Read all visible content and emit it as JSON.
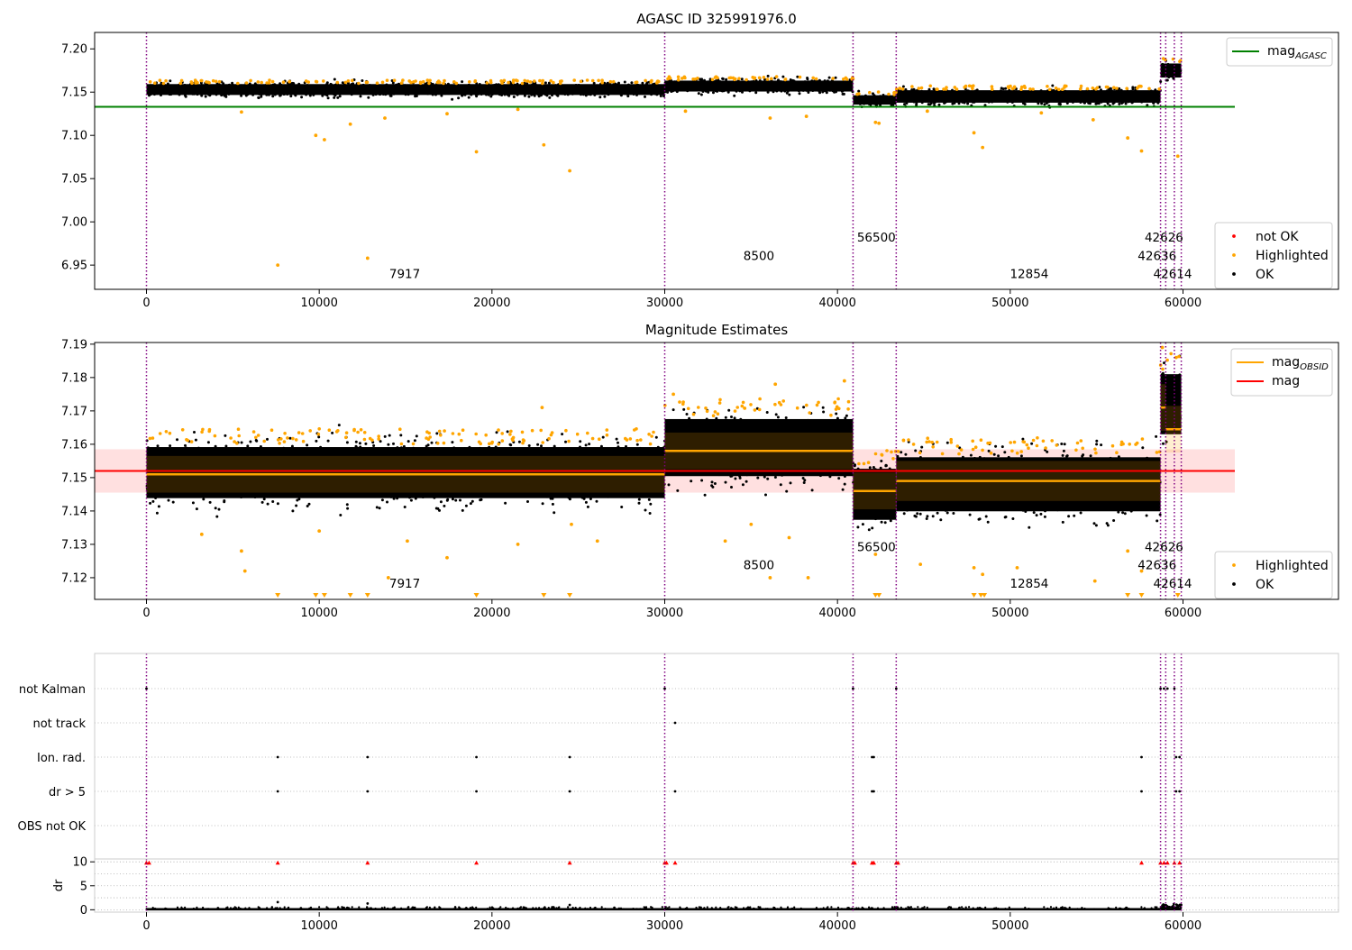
{
  "chart_data": [
    {
      "type": "scatter",
      "title": "AGASC ID 325991976.0",
      "xlim": [
        -3000,
        69000
      ],
      "ylim": [
        6.922,
        7.219
      ],
      "xticks": [
        0,
        10000,
        20000,
        30000,
        40000,
        50000,
        60000
      ],
      "yticks": [
        6.95,
        7.0,
        7.05,
        7.1,
        7.15,
        7.2
      ],
      "ytick_labels": [
        "6.95",
        "7.00",
        "7.05",
        "7.10",
        "7.15",
        "7.20"
      ],
      "legend_upper": {
        "position": "upper right",
        "entries": [
          {
            "label": "mag",
            "subscript": "AGASC",
            "color": "#008000",
            "kind": "line"
          }
        ]
      },
      "legend_lower": {
        "position": "lower right",
        "entries": [
          {
            "label": "not OK",
            "color": "#ff0000",
            "kind": "marker"
          },
          {
            "label": "Highlighted",
            "color": "#ffa500",
            "kind": "marker"
          },
          {
            "label": "OK",
            "color": "#000000",
            "kind": "marker"
          }
        ]
      },
      "mag_agasc": {
        "x": [
          -3000,
          63000
        ],
        "y": 7.133
      },
      "ok_bands": [
        {
          "x": [
            0,
            30000
          ],
          "y": 7.153,
          "spread": 0.007
        },
        {
          "x": [
            30000,
            40900
          ],
          "y": 7.157,
          "spread": 0.007
        },
        {
          "x": [
            40900,
            43400
          ],
          "y": 7.141,
          "spread": 0.006
        },
        {
          "x": [
            43400,
            58700
          ],
          "y": 7.145,
          "spread": 0.008
        },
        {
          "x": [
            58700,
            59900
          ],
          "y": 7.175,
          "spread": 0.009
        }
      ],
      "highlighted": [
        {
          "x": 7600,
          "y": 6.95
        },
        {
          "x": 12800,
          "y": 6.958
        },
        {
          "x": 9800,
          "y": 7.1
        },
        {
          "x": 10300,
          "y": 7.095
        },
        {
          "x": 19100,
          "y": 7.081
        },
        {
          "x": 23000,
          "y": 7.089
        },
        {
          "x": 24500,
          "y": 7.059
        },
        {
          "x": 11800,
          "y": 7.113
        },
        {
          "x": 13800,
          "y": 7.12
        },
        {
          "x": 5500,
          "y": 7.127
        },
        {
          "x": 17400,
          "y": 7.125
        },
        {
          "x": 21500,
          "y": 7.13
        },
        {
          "x": 31200,
          "y": 7.128
        },
        {
          "x": 36100,
          "y": 7.12
        },
        {
          "x": 38200,
          "y": 7.122
        },
        {
          "x": 42200,
          "y": 7.115
        },
        {
          "x": 42400,
          "y": 7.114
        },
        {
          "x": 48400,
          "y": 7.086
        },
        {
          "x": 47900,
          "y": 7.103
        },
        {
          "x": 56800,
          "y": 7.097
        },
        {
          "x": 57600,
          "y": 7.082
        },
        {
          "x": 59700,
          "y": 7.076
        },
        {
          "x": 45200,
          "y": 7.128
        },
        {
          "x": 54800,
          "y": 7.118
        },
        {
          "x": 51800,
          "y": 7.126
        }
      ],
      "obsid_boundaries": [
        0,
        30000,
        40900,
        43400,
        58700,
        59000,
        59500,
        59900
      ],
      "obsid_labels": [
        {
          "text": "7917",
          "x": 14950,
          "y": 6.935
        },
        {
          "text": "8500",
          "x": 35450,
          "y": 6.956
        },
        {
          "text": "56500",
          "x": 42250,
          "y": 6.977
        },
        {
          "text": "12854",
          "x": 51100,
          "y": 6.935
        },
        {
          "text": "42626",
          "x": 58900,
          "y": 6.977
        },
        {
          "text": "42636",
          "x": 58500,
          "y": 6.956
        },
        {
          "text": "42614",
          "x": 59400,
          "y": 6.935
        }
      ]
    },
    {
      "type": "scatter",
      "title": "Magnitude Estimates",
      "xlim": [
        -3000,
        69000
      ],
      "ylim": [
        7.1135,
        7.1905
      ],
      "xticks": [
        0,
        10000,
        20000,
        30000,
        40000,
        50000,
        60000
      ],
      "yticks": [
        7.12,
        7.13,
        7.14,
        7.15,
        7.16,
        7.17,
        7.18,
        7.19
      ],
      "ytick_labels": [
        "7.12",
        "7.13",
        "7.14",
        "7.15",
        "7.16",
        "7.17",
        "7.18",
        "7.19"
      ],
      "legend_upper": {
        "position": "upper right",
        "entries": [
          {
            "label": "mag",
            "subscript": "OBSID",
            "color": "#ffa500",
            "kind": "line"
          },
          {
            "label": "mag",
            "subscript": "",
            "color": "#ff0000",
            "kind": "line"
          }
        ]
      },
      "legend_lower": {
        "position": "lower right",
        "entries": [
          {
            "label": "Highlighted",
            "color": "#ffa500",
            "kind": "marker"
          },
          {
            "label": "OK",
            "color": "#000000",
            "kind": "marker"
          }
        ]
      },
      "mag": {
        "x": [
          -3000,
          63000
        ],
        "y": 7.152,
        "band": [
          7.1455,
          7.1585
        ]
      },
      "mag_obsid": [
        {
          "x": [
            0,
            30000
          ],
          "y": 7.151,
          "std": 0.0055
        },
        {
          "x": [
            30000,
            40900
          ],
          "y": 7.158,
          "std": 0.0055
        },
        {
          "x": [
            40900,
            43400
          ],
          "y": 7.146,
          "std": 0.0055
        },
        {
          "x": [
            43400,
            58700
          ],
          "y": 7.149,
          "std": 0.006
        },
        {
          "x": [
            58700,
            59000
          ],
          "y": 7.171,
          "std": 0.007
        },
        {
          "x": [
            59000,
            59900
          ],
          "y": 7.1645,
          "std": 0.007
        }
      ],
      "ok_bands": [
        {
          "x": [
            0,
            30000
          ],
          "y": 7.1515,
          "spread": 0.0085
        },
        {
          "x": [
            30000,
            40900
          ],
          "y": 7.159,
          "spread": 0.0095
        },
        {
          "x": [
            40900,
            43400
          ],
          "y": 7.145,
          "spread": 0.0085
        },
        {
          "x": [
            43400,
            58700
          ],
          "y": 7.148,
          "spread": 0.009
        },
        {
          "x": [
            58700,
            59900
          ],
          "y": 7.172,
          "spread": 0.01
        }
      ],
      "highlighted": [
        {
          "x": 3200,
          "y": 7.133
        },
        {
          "x": 5500,
          "y": 7.128
        },
        {
          "x": 5700,
          "y": 7.122
        },
        {
          "x": 10000,
          "y": 7.134
        },
        {
          "x": 14000,
          "y": 7.12
        },
        {
          "x": 15100,
          "y": 7.131
        },
        {
          "x": 17400,
          "y": 7.126
        },
        {
          "x": 21500,
          "y": 7.13
        },
        {
          "x": 24600,
          "y": 7.136
        },
        {
          "x": 26100,
          "y": 7.131
        },
        {
          "x": 33500,
          "y": 7.131
        },
        {
          "x": 35000,
          "y": 7.136
        },
        {
          "x": 36100,
          "y": 7.12
        },
        {
          "x": 37200,
          "y": 7.132
        },
        {
          "x": 38300,
          "y": 7.12
        },
        {
          "x": 42200,
          "y": 7.127
        },
        {
          "x": 44800,
          "y": 7.124
        },
        {
          "x": 47900,
          "y": 7.123
        },
        {
          "x": 48400,
          "y": 7.121
        },
        {
          "x": 50400,
          "y": 7.123
        },
        {
          "x": 54900,
          "y": 7.119
        },
        {
          "x": 56800,
          "y": 7.128
        },
        {
          "x": 57600,
          "y": 7.122
        },
        {
          "x": 36400,
          "y": 7.178
        },
        {
          "x": 40400,
          "y": 7.179
        },
        {
          "x": 58800,
          "y": 7.189
        },
        {
          "x": 59600,
          "y": 7.186
        },
        {
          "x": 22900,
          "y": 7.171
        },
        {
          "x": 30500,
          "y": 7.175
        }
      ],
      "below_range_x": [
        7600,
        9800,
        10300,
        11800,
        12800,
        19100,
        23000,
        24500,
        42200,
        42400,
        47900,
        48300,
        48500,
        56800,
        57600,
        59700
      ],
      "obsid_boundaries": [
        0,
        30000,
        40900,
        43400,
        58700,
        59000,
        59500,
        59900
      ],
      "obsid_labels": [
        {
          "text": "7917",
          "x": 14950,
          "y": 7.117
        },
        {
          "text": "8500",
          "x": 35450,
          "y": 7.1225
        },
        {
          "text": "56500",
          "x": 42250,
          "y": 7.128
        },
        {
          "text": "12854",
          "x": 51100,
          "y": 7.117
        },
        {
          "text": "42626",
          "x": 58900,
          "y": 7.128
        },
        {
          "text": "42636",
          "x": 58500,
          "y": 7.1225
        },
        {
          "text": "42614",
          "x": 59400,
          "y": 7.117
        }
      ]
    },
    {
      "type": "scatter",
      "title": "",
      "xlim": [
        -3000,
        69000
      ],
      "categories": [
        "not Kalman",
        "not track",
        "Ion. rad.",
        "dr > 5",
        "OBS not OK"
      ],
      "flags": {
        "not Kalman": [
          0,
          30000,
          40900,
          43400,
          58700,
          58900,
          59100,
          59500
        ],
        "not track": [
          30600
        ],
        "Ion. rad.": [
          7600,
          12800,
          19100,
          24500,
          42000,
          42100,
          57600,
          59600,
          59800
        ],
        "dr > 5": [
          7600,
          12800,
          19100,
          24500,
          30600,
          42000,
          42100,
          57600,
          59600,
          59800
        ],
        "OBS not OK": []
      },
      "obsid_boundaries": [
        0,
        30000,
        40900,
        43400,
        58700,
        59000,
        59500,
        59900
      ]
    },
    {
      "type": "scatter",
      "title": "",
      "xlim": [
        -3000,
        69000
      ],
      "ylim": [
        -0.5,
        10.6
      ],
      "ylabel": "dr",
      "xticks": [
        0,
        10000,
        20000,
        30000,
        40000,
        50000,
        60000
      ],
      "yticks": [
        0,
        5,
        10
      ],
      "ytick_labels": [
        "0",
        "5",
        "10"
      ],
      "clipped_red": [
        0,
        150,
        7600,
        12800,
        19100,
        24500,
        30000,
        30100,
        30600,
        40900,
        41000,
        42000,
        42100,
        43400,
        43500,
        57600,
        58700,
        58900,
        59100,
        59500,
        59800
      ],
      "outliers": [
        {
          "x": 7600,
          "y": 1.6
        },
        {
          "x": 12800,
          "y": 1.3
        },
        {
          "x": 24500,
          "y": 1.0
        }
      ],
      "obsid_boundaries": [
        0,
        30000,
        40900,
        43400,
        58700,
        59000,
        59500,
        59900
      ]
    }
  ]
}
